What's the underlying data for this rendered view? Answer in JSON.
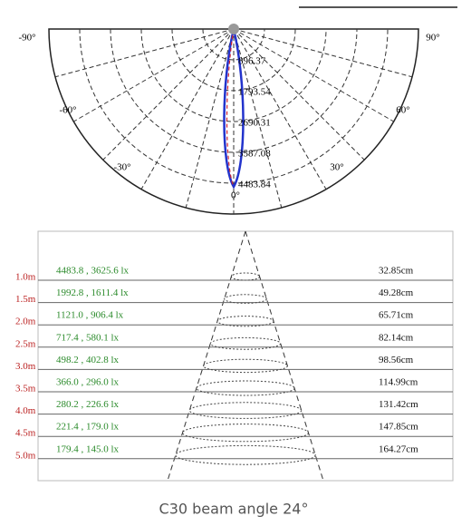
{
  "polar": {
    "angle_labels": [
      "-90°",
      "90°",
      "-60°",
      "60°",
      "-30°",
      "30°",
      "0°"
    ],
    "ring_labels": [
      "896.37",
      "1793.54",
      "2690.31",
      "3587.08",
      "4483.84"
    ]
  },
  "table": {
    "rows": [
      [
        "1.0m",
        "4483.8 , 3625.6 lx",
        "32.85cm"
      ],
      [
        "1.5m",
        "1992.8 , 1611.4 lx",
        "49.28cm"
      ],
      [
        "2.0m",
        "1121.0 , 906.4 lx",
        "65.71cm"
      ],
      [
        "2.5m",
        "717.4 , 580.1 lx",
        "82.14cm"
      ],
      [
        "3.0m",
        "498.2 , 402.8 lx",
        "98.56cm"
      ],
      [
        "3.5m",
        "366.0 , 296.0 lx",
        "114.99cm"
      ],
      [
        "4.0m",
        "280.2 , 226.6 lx",
        "131.42cm"
      ],
      [
        "4.5m",
        "221.4 , 179.0 lx",
        "147.85cm"
      ],
      [
        "5.0m",
        "179.4 , 145.0 lx",
        "164.27cm"
      ]
    ]
  },
  "caption": "C30 beam angle 24°"
}
